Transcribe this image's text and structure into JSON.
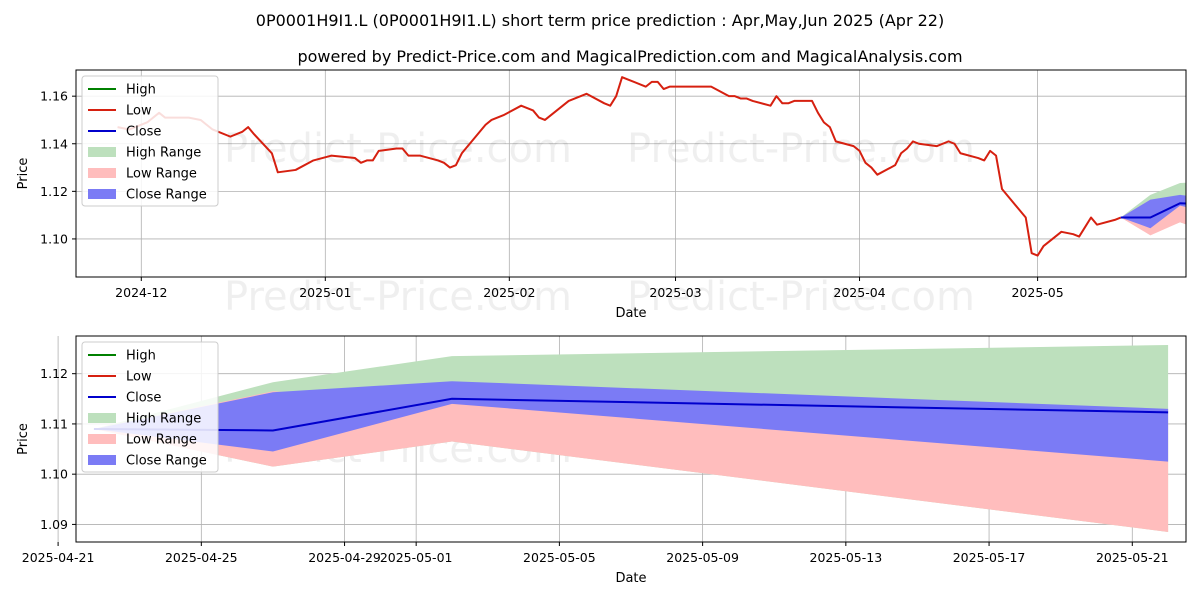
{
  "title": "0P0001H9I1.L (0P0001H9I1.L) short term price prediction : Apr,May,Jun 2025 (Apr 22)",
  "subtitle": "powered by Predict-Price.com and MagicalPrediction.com and MagicalAnalysis.com",
  "watermark": "Predict-Price.com",
  "colors": {
    "high": "#008000",
    "low": "#d62010",
    "close": "#0000cc",
    "high_range": "#bde0bd",
    "low_range": "#ffbdbd",
    "close_range": "#7b7bf5",
    "grid": "#b0b0b0"
  },
  "chart_data": [
    {
      "type": "line",
      "xlabel": "Date",
      "ylabel": "Price",
      "xlim": [
        "2024-11-20",
        "2025-05-26"
      ],
      "ylim": [
        1.084,
        1.171
      ],
      "grid": true,
      "legend_position": "top-left",
      "legend": [
        "High",
        "Low",
        "Close",
        "High Range",
        "Low Range",
        "Close Range"
      ],
      "x_ticks": [
        {
          "date": "2024-12-01",
          "label": "2024-12"
        },
        {
          "date": "2025-01-01",
          "label": "2025-01"
        },
        {
          "date": "2025-02-01",
          "label": "2025-02"
        },
        {
          "date": "2025-03-01",
          "label": "2025-03"
        },
        {
          "date": "2025-04-01",
          "label": "2025-04"
        },
        {
          "date": "2025-05-01",
          "label": "2025-05"
        }
      ],
      "y_ticks": [
        1.1,
        1.12,
        1.14,
        1.16
      ],
      "history_low": [
        [
          "2024-11-27",
          1.147
        ],
        [
          "2024-11-29",
          1.146
        ],
        [
          "2024-12-02",
          1.149
        ],
        [
          "2024-12-04",
          1.153
        ],
        [
          "2024-12-05",
          1.151
        ],
        [
          "2024-12-09",
          1.151
        ],
        [
          "2024-12-11",
          1.15
        ],
        [
          "2024-12-12",
          1.148
        ],
        [
          "2024-12-13",
          1.146
        ],
        [
          "2024-12-16",
          1.143
        ],
        [
          "2024-12-18",
          1.145
        ],
        [
          "2024-12-19",
          1.147
        ],
        [
          "2024-12-20",
          1.144
        ],
        [
          "2024-12-23",
          1.136
        ],
        [
          "2024-12-24",
          1.128
        ],
        [
          "2024-12-27",
          1.129
        ],
        [
          "2024-12-30",
          1.133
        ],
        [
          "2025-01-02",
          1.135
        ],
        [
          "2025-01-06",
          1.134
        ],
        [
          "2025-01-07",
          1.132
        ],
        [
          "2025-01-08",
          1.133
        ],
        [
          "2025-01-09",
          1.133
        ],
        [
          "2025-01-10",
          1.137
        ],
        [
          "2025-01-13",
          1.138
        ],
        [
          "2025-01-14",
          1.138
        ],
        [
          "2025-01-15",
          1.135
        ],
        [
          "2025-01-17",
          1.135
        ],
        [
          "2025-01-20",
          1.133
        ],
        [
          "2025-01-21",
          1.132
        ],
        [
          "2025-01-22",
          1.13
        ],
        [
          "2025-01-23",
          1.131
        ],
        [
          "2025-01-24",
          1.136
        ],
        [
          "2025-01-27",
          1.145
        ],
        [
          "2025-01-28",
          1.148
        ],
        [
          "2025-01-29",
          1.15
        ],
        [
          "2025-01-30",
          1.151
        ],
        [
          "2025-01-31",
          1.152
        ],
        [
          "2025-02-03",
          1.156
        ],
        [
          "2025-02-04",
          1.155
        ],
        [
          "2025-02-05",
          1.154
        ],
        [
          "2025-02-06",
          1.151
        ],
        [
          "2025-02-07",
          1.15
        ],
        [
          "2025-02-10",
          1.156
        ],
        [
          "2025-02-11",
          1.158
        ],
        [
          "2025-02-12",
          1.159
        ],
        [
          "2025-02-13",
          1.16
        ],
        [
          "2025-02-14",
          1.161
        ],
        [
          "2025-02-17",
          1.157
        ],
        [
          "2025-02-18",
          1.156
        ],
        [
          "2025-02-19",
          1.16
        ],
        [
          "2025-02-20",
          1.168
        ],
        [
          "2025-02-21",
          1.167
        ],
        [
          "2025-02-24",
          1.164
        ],
        [
          "2025-02-25",
          1.166
        ],
        [
          "2025-02-26",
          1.166
        ],
        [
          "2025-02-27",
          1.163
        ],
        [
          "2025-02-28",
          1.164
        ],
        [
          "2025-03-03",
          1.164
        ],
        [
          "2025-03-04",
          1.164
        ],
        [
          "2025-03-05",
          1.164
        ],
        [
          "2025-03-06",
          1.164
        ],
        [
          "2025-03-07",
          1.164
        ],
        [
          "2025-03-10",
          1.16
        ],
        [
          "2025-03-11",
          1.16
        ],
        [
          "2025-03-12",
          1.159
        ],
        [
          "2025-03-13",
          1.159
        ],
        [
          "2025-03-14",
          1.158
        ],
        [
          "2025-03-17",
          1.156
        ],
        [
          "2025-03-18",
          1.16
        ],
        [
          "2025-03-19",
          1.157
        ],
        [
          "2025-03-20",
          1.157
        ],
        [
          "2025-03-21",
          1.158
        ],
        [
          "2025-03-24",
          1.158
        ],
        [
          "2025-03-25",
          1.153
        ],
        [
          "2025-03-26",
          1.149
        ],
        [
          "2025-03-27",
          1.147
        ],
        [
          "2025-03-28",
          1.141
        ],
        [
          "2025-03-31",
          1.139
        ],
        [
          "2025-04-01",
          1.137
        ],
        [
          "2025-04-02",
          1.132
        ],
        [
          "2025-04-03",
          1.13
        ],
        [
          "2025-04-04",
          1.127
        ],
        [
          "2025-04-07",
          1.131
        ],
        [
          "2025-04-08",
          1.136
        ],
        [
          "2025-04-09",
          1.138
        ],
        [
          "2025-04-10",
          1.141
        ],
        [
          "2025-04-11",
          1.14
        ],
        [
          "2025-04-14",
          1.139
        ],
        [
          "2025-04-15",
          1.14
        ],
        [
          "2025-04-16",
          1.141
        ],
        [
          "2025-04-17",
          1.14
        ],
        [
          "2025-04-18",
          1.136
        ],
        [
          "2025-04-21",
          1.134
        ],
        [
          "2025-04-22",
          1.133
        ],
        [
          "2025-04-23",
          1.137
        ],
        [
          "2025-04-24",
          1.135
        ],
        [
          "2025-04-25",
          1.121
        ],
        [
          "2025-04-28",
          1.112
        ],
        [
          "2025-04-29",
          1.109
        ],
        [
          "2025-04-30",
          1.094
        ],
        [
          "2025-05-01",
          1.093
        ],
        [
          "2025-05-02",
          1.097
        ],
        [
          "2025-05-05",
          1.103
        ],
        [
          "2025-05-07",
          1.102
        ],
        [
          "2025-05-08",
          1.101
        ],
        [
          "2025-05-09",
          1.105
        ],
        [
          "2025-05-10",
          1.109
        ],
        [
          "2025-05-11",
          1.106
        ],
        [
          "2025-05-14",
          1.108
        ],
        [
          "2025-05-15",
          1.109
        ]
      ],
      "forecast": {
        "dates": [
          "2025-05-15",
          "2025-05-20",
          "2025-05-25",
          "2025-06-14"
        ],
        "close": [
          1.109,
          1.109,
          1.115,
          1.1125
        ],
        "high_range": [
          [
            1.109,
            1.109
          ],
          [
            1.102,
            1.1185
          ],
          [
            1.107,
            1.1235
          ],
          [
            1.089,
            1.1257
          ]
        ],
        "low_range": [
          [
            1.109,
            1.109
          ],
          [
            1.1015,
            1.1165
          ],
          [
            1.107,
            1.114
          ],
          [
            1.089,
            1.113
          ]
        ],
        "close_range": [
          [
            1.109,
            1.109
          ],
          [
            1.1045,
            1.1165
          ],
          [
            1.114,
            1.1185
          ],
          [
            1.1025,
            1.113
          ]
        ]
      }
    },
    {
      "type": "line",
      "xlabel": "Date",
      "ylabel": "Price",
      "xlim": [
        "2025-04-21 12:00",
        "2025-05-22 12:00"
      ],
      "ylim": [
        1.0865,
        1.1275
      ],
      "grid": true,
      "legend_position": "top-left",
      "legend": [
        "High",
        "Low",
        "Close",
        "High Range",
        "Low Range",
        "Close Range"
      ],
      "x_ticks": [
        {
          "date": "2025-04-21",
          "label": "2025-04-21"
        },
        {
          "date": "2025-04-25",
          "label": "2025-04-25"
        },
        {
          "date": "2025-04-29",
          "label": "2025-04-29"
        },
        {
          "date": "2025-05-01",
          "label": "2025-05-01"
        },
        {
          "date": "2025-05-05",
          "label": "2025-05-05"
        },
        {
          "date": "2025-05-09",
          "label": "2025-05-09"
        },
        {
          "date": "2025-05-13",
          "label": "2025-05-13"
        },
        {
          "date": "2025-05-17",
          "label": "2025-05-17"
        },
        {
          "date": "2025-05-21",
          "label": "2025-05-21"
        }
      ],
      "y_ticks": [
        1.09,
        1.1,
        1.11,
        1.12
      ],
      "forecast": {
        "dates": [
          "2025-04-22",
          "2025-04-27",
          "2025-05-02",
          "2025-05-22"
        ],
        "close": [
          1.109,
          1.1087,
          1.115,
          1.1123
        ],
        "high_range": [
          [
            1.109,
            1.109
          ],
          [
            1.1015,
            1.1183
          ],
          [
            1.1065,
            1.1235
          ],
          [
            1.0885,
            1.1257
          ]
        ],
        "low_range": [
          [
            1.109,
            1.109
          ],
          [
            1.1015,
            1.1165
          ],
          [
            1.1065,
            1.114
          ],
          [
            1.0885,
            1.113
          ]
        ],
        "close_range": [
          [
            1.109,
            1.109
          ],
          [
            1.1045,
            1.1163
          ],
          [
            1.114,
            1.1185
          ],
          [
            1.1025,
            1.113
          ]
        ]
      }
    }
  ]
}
